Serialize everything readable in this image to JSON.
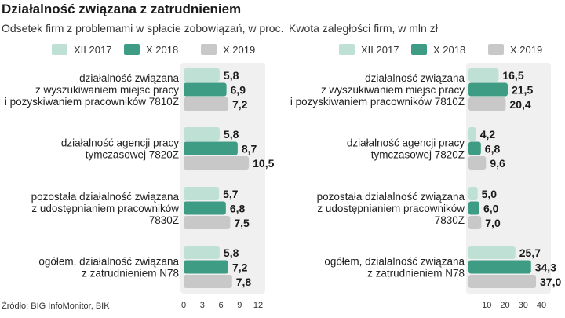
{
  "title": "Działalność związana z zatrudnieniem",
  "source": "Źródło: BIG InfoMonitor, BIK",
  "colors": {
    "XII 2017": "#bfe0d4",
    "X 2018": "#3e9b84",
    "X 2019": "#c8c8c8",
    "panel_bg": "#f0f0f0"
  },
  "chart_data": [
    {
      "type": "bar",
      "orientation": "horizontal",
      "title": "Odsetek firm z problemami w spłacie zobowiązań, w proc.",
      "legend": [
        "XII 2017",
        "X 2018",
        "X 2019"
      ],
      "categories": [
        [
          "działalność związana",
          "z wyszukiwaniem miejsc pracy",
          "i pozyskiwaniem pracowników 7810Z"
        ],
        [
          "działalność agencji pracy",
          "tymczasowej 7820Z"
        ],
        [
          "pozostała działalność związana",
          "z udostępnianiem pracowników",
          "7830Z"
        ],
        [
          "ogółem, działalność związana",
          "z zatrudnieniem N78"
        ]
      ],
      "series": [
        {
          "name": "XII 2017",
          "values": [
            5.8,
            5.8,
            5.7,
            5.8
          ],
          "labels": [
            "5,8",
            "5,8",
            "5,7",
            "5,8"
          ]
        },
        {
          "name": "X 2018",
          "values": [
            6.9,
            8.7,
            6.8,
            7.2
          ],
          "labels": [
            "6,9",
            "8,7",
            "6,8",
            "7,2"
          ]
        },
        {
          "name": "X 2019",
          "values": [
            7.2,
            10.5,
            7.5,
            7.8
          ],
          "labels": [
            "7,2",
            "10,5",
            "7,5",
            "7,8"
          ]
        }
      ],
      "xlim": [
        0,
        12
      ],
      "ticks": [
        0,
        3,
        6,
        9,
        12
      ],
      "tick_labels": [
        "0",
        "3",
        "6",
        "9",
        "12"
      ]
    },
    {
      "type": "bar",
      "orientation": "horizontal",
      "title": "Kwota zaległości firm, w mln zł",
      "legend": [
        "XII 2017",
        "X 2018",
        "X 2019"
      ],
      "categories": [
        [
          "działalność związana",
          "z wyszukiwaniem miejsc pracy",
          "i pozyskiwaniem pracowników 7810Z"
        ],
        [
          "działalność agencji pracy",
          "tymczasowej 7820Z"
        ],
        [
          "pozostała działalność związana",
          "z udostępnianiem pracowników",
          "7830Z"
        ],
        [
          "ogółem, działalność związana",
          "z zatrudnieniem N78"
        ]
      ],
      "series": [
        {
          "name": "XII 2017",
          "values": [
            16.5,
            4.2,
            5.0,
            25.7
          ],
          "labels": [
            "16,5",
            "4,2",
            "5,0",
            "25,7"
          ]
        },
        {
          "name": "X 2018",
          "values": [
            21.5,
            6.8,
            6.0,
            34.3
          ],
          "labels": [
            "21,5",
            "6,8",
            "6,0",
            "34,3"
          ]
        },
        {
          "name": "X 2019",
          "values": [
            20.4,
            9.6,
            7.0,
            37.0
          ],
          "labels": [
            "20,4",
            "9,6",
            "7,0",
            "37,0"
          ]
        }
      ],
      "xlim": [
        0,
        40
      ],
      "ticks": [
        10,
        20,
        30,
        40
      ],
      "tick_labels": [
        "10",
        "20",
        "30",
        "40"
      ]
    }
  ]
}
